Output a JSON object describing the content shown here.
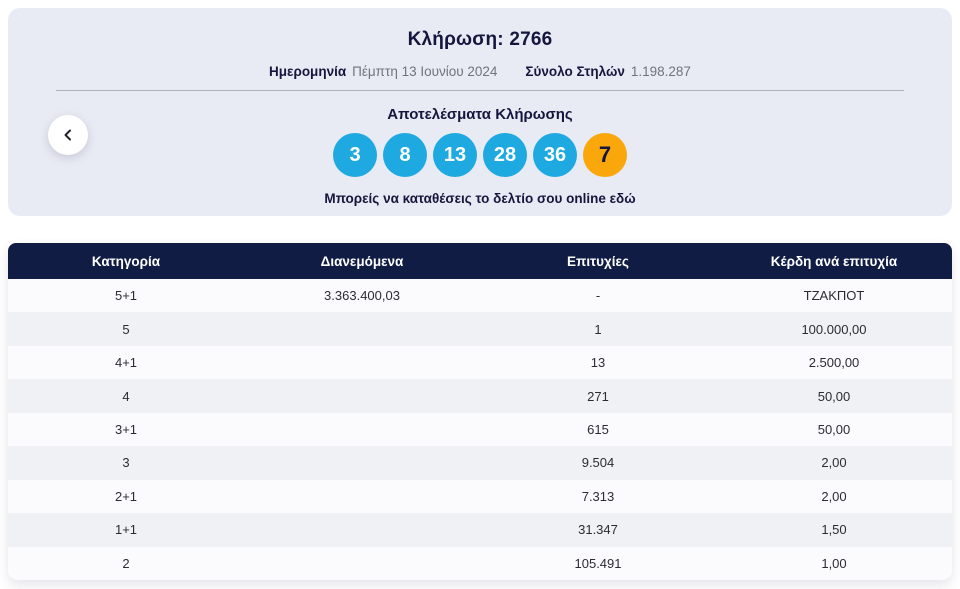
{
  "colors": {
    "accent_blue": "#1fa9e1",
    "joker_orange": "#f9a70b",
    "header_navy": "#111c45",
    "panel_bg": "#e9ebf4",
    "text_navy": "#15163d"
  },
  "header": {
    "title": "Κλήρωση: 2766",
    "date_label": "Ημερομηνία",
    "date_value": "Πέμπτη 13 Ιουνίου 2024",
    "columns_label": "Σύνολο Στηλών",
    "columns_value": "1.198.287"
  },
  "nav": {
    "prev_icon": "chevron-left"
  },
  "results": {
    "title": "Αποτελέσματα Κλήρωσης",
    "numbers": [
      "3",
      "8",
      "13",
      "28",
      "36"
    ],
    "joker": "7",
    "cta_text": "Μπορείς να καταθέσεις το δελτίο σου online",
    "cta_link": "εδώ"
  },
  "table": {
    "headers": [
      "Κατηγορία",
      "Διανεμόμενα",
      "Επιτυχίες",
      "Κέρδη ανά επιτυχία"
    ],
    "rows": [
      [
        "5+1",
        "3.363.400,03",
        "-",
        "ΤΖΑΚΠΟΤ"
      ],
      [
        "5",
        "",
        "1",
        "100.000,00"
      ],
      [
        "4+1",
        "",
        "13",
        "2.500,00"
      ],
      [
        "4",
        "",
        "271",
        "50,00"
      ],
      [
        "3+1",
        "",
        "615",
        "50,00"
      ],
      [
        "3",
        "",
        "9.504",
        "2,00"
      ],
      [
        "2+1",
        "",
        "7.313",
        "2,00"
      ],
      [
        "1+1",
        "",
        "31.347",
        "1,50"
      ],
      [
        "2",
        "",
        "105.491",
        "1,00"
      ]
    ]
  }
}
